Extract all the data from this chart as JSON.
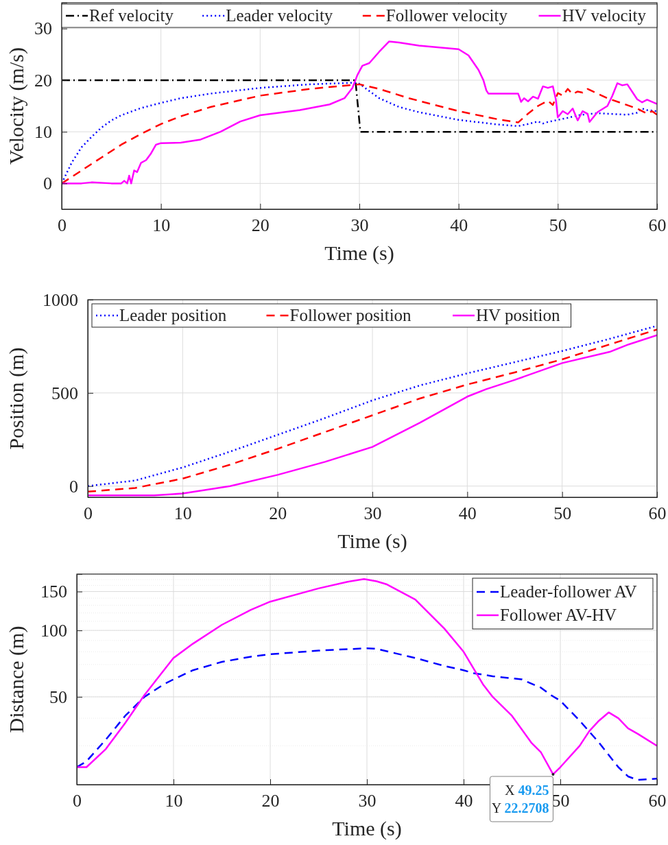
{
  "chart_data": [
    {
      "type": "line",
      "xlabel": "Time (s)",
      "ylabel": "Velocity (m/s)",
      "xlim": [
        0,
        60
      ],
      "xticks": [
        0,
        10,
        20,
        30,
        40,
        50,
        60
      ],
      "ylim": [
        -5,
        35
      ],
      "yticks": [
        0,
        10,
        20,
        30
      ],
      "grid": true,
      "legend": "top",
      "series": [
        {
          "name": "Ref velocity",
          "color": "#000000",
          "line_style": "dashdot",
          "x": [
            0,
            29.6,
            30.1,
            60
          ],
          "values": [
            20,
            20,
            10,
            10
          ]
        },
        {
          "name": "Leader velocity",
          "color": "#0000ff",
          "line_style": "dotted",
          "x": [
            0,
            1,
            2,
            3,
            4,
            5,
            6,
            8,
            10,
            12,
            15,
            20,
            25,
            29.5,
            30,
            32,
            34,
            36,
            40,
            44,
            46,
            47,
            48,
            48.5,
            49,
            50,
            51,
            52,
            54,
            56,
            57,
            58,
            58.5,
            59,
            60
          ],
          "values": [
            0,
            4,
            7,
            9,
            10.8,
            12.2,
            13.2,
            14.6,
            15.6,
            16.5,
            17.4,
            18.5,
            19.2,
            19.5,
            19.3,
            16.5,
            14.8,
            13.8,
            12.3,
            11.4,
            11.1,
            11.5,
            12,
            11.6,
            11.9,
            12.3,
            12.7,
            13.2,
            13.6,
            13.4,
            13.3,
            13.7,
            14.5,
            14.2,
            14
          ]
        },
        {
          "name": "Follower velocity",
          "color": "#ff0000",
          "line_style": "dashed",
          "x": [
            0,
            2,
            4,
            6,
            8,
            10,
            12,
            15,
            20,
            25,
            30,
            32,
            35,
            40,
            44,
            46,
            47,
            48,
            49,
            49.5,
            50,
            50.5,
            51,
            51.5,
            52,
            52.5,
            53,
            55,
            58,
            59,
            59.5,
            60
          ],
          "values": [
            0,
            2.5,
            5,
            7.5,
            9.6,
            11.5,
            13,
            14.8,
            17,
            18.3,
            19.2,
            18.3,
            16.5,
            14,
            12.4,
            11.8,
            13.5,
            15,
            16,
            15.2,
            17.5,
            17,
            18.3,
            17.3,
            17.8,
            17.6,
            18.3,
            16.5,
            14.5,
            13.5,
            14,
            13.3
          ]
        },
        {
          "name": "HV velocity",
          "color": "#ff00ff",
          "line_style": "solid",
          "x": [
            0,
            2,
            3,
            5,
            6,
            6.3,
            6.6,
            6.8,
            7,
            7.3,
            7.6,
            8,
            8.5,
            9,
            9.5,
            10,
            12,
            14,
            16,
            18,
            20,
            24,
            27,
            28.5,
            29.3,
            29.8,
            30.3,
            31,
            32,
            33,
            34,
            36,
            40,
            41,
            42,
            42.5,
            42.8,
            43,
            46,
            46.3,
            46.6,
            47,
            47.5,
            48,
            48.5,
            49,
            49.5,
            49.8,
            50,
            50.5,
            51,
            51.5,
            52,
            52.5,
            53,
            53.2,
            54,
            55,
            55.5,
            56,
            56.5,
            57,
            58,
            58.5,
            59,
            60
          ],
          "values": [
            0,
            0,
            0.2,
            0,
            0,
            0.5,
            0,
            1.5,
            0,
            2.5,
            2.2,
            4,
            4.5,
            5.8,
            7.5,
            7.8,
            7.9,
            8.5,
            10,
            12,
            13.2,
            14.2,
            15.3,
            16.5,
            18.5,
            21,
            22.8,
            23.3,
            25.5,
            27.5,
            27.3,
            26.7,
            26,
            24.8,
            22,
            20,
            18,
            17.4,
            17.4,
            15.8,
            16.5,
            15.9,
            16.8,
            16.4,
            18.8,
            18.5,
            18.8,
            16.3,
            12.8,
            14,
            13.4,
            14.5,
            12.2,
            14,
            13.5,
            11.9,
            13.8,
            15,
            17,
            19.4,
            19,
            19.2,
            16.3,
            15.7,
            16.2,
            15.4
          ]
        }
      ]
    },
    {
      "type": "line",
      "xlabel": "Time (s)",
      "ylabel": "Position (m)",
      "xlim": [
        0,
        60
      ],
      "xticks": [
        0,
        10,
        20,
        30,
        40,
        50,
        60
      ],
      "ylim": [
        -60,
        1000
      ],
      "yticks": [
        0,
        500,
        1000
      ],
      "grid": true,
      "legend": "top left",
      "series": [
        {
          "name": "Leader position",
          "color": "#0000ff",
          "line_style": "dotted",
          "x": [
            0,
            5,
            10,
            15,
            20,
            25,
            30,
            35,
            40,
            45,
            50,
            55,
            60
          ],
          "values": [
            0,
            30,
            100,
            185,
            275,
            365,
            460,
            540,
            605,
            665,
            725,
            790,
            860
          ]
        },
        {
          "name": "Follower position",
          "color": "#ff0000",
          "line_style": "dashed",
          "x": [
            0,
            5,
            10,
            15,
            20,
            25,
            30,
            35,
            40,
            45,
            50,
            55,
            60
          ],
          "values": [
            -30,
            -10,
            40,
            115,
            200,
            290,
            380,
            470,
            545,
            610,
            680,
            760,
            840
          ]
        },
        {
          "name": "HV position",
          "color": "#ff00ff",
          "line_style": "solid",
          "x": [
            0,
            5,
            7,
            10,
            15,
            20,
            25,
            30,
            35,
            40,
            42,
            45,
            50,
            55,
            57,
            60
          ],
          "values": [
            -50,
            -50,
            -50,
            -40,
            0,
            60,
            130,
            210,
            340,
            480,
            520,
            570,
            660,
            720,
            760,
            810
          ]
        }
      ]
    },
    {
      "type": "line",
      "xlabel": "Time (s)",
      "ylabel": "Distance (m)",
      "log": true,
      "xlim": [
        0,
        60
      ],
      "xticks": [
        0,
        10,
        20,
        30,
        40,
        50,
        60
      ],
      "ylim": [
        20,
        180
      ],
      "yticks": [
        50,
        100,
        150
      ],
      "grid": true,
      "legend": "top right",
      "annotations": [
        {
          "text": "X 49.25",
          "x": 49.25,
          "y": 22.2708
        },
        {
          "text": "Y 22.2708",
          "x": 49.25,
          "y": 22.2708
        }
      ],
      "series": [
        {
          "name": "Leader-follower AV",
          "color": "#0000ff",
          "line_style": "dashed",
          "x": [
            0,
            1,
            3,
            5,
            7,
            9,
            10,
            12,
            15,
            18,
            20,
            25,
            30,
            31,
            35,
            38,
            40,
            41,
            43,
            46,
            48,
            49,
            50,
            52,
            54,
            56,
            57,
            58,
            60
          ],
          "values": [
            24,
            25.5,
            32,
            41,
            50,
            57,
            60,
            66,
            72,
            76,
            78,
            81,
            83,
            82.5,
            75,
            69,
            66,
            64,
            62,
            60,
            55,
            51,
            48,
            39,
            31,
            24,
            21.8,
            21,
            21.3
          ]
        },
        {
          "name": "Follower AV-HV",
          "color": "#ff00ff",
          "line_style": "solid",
          "x": [
            0,
            1,
            3,
            5,
            7,
            8,
            10,
            12,
            15,
            18,
            20,
            25,
            28,
            29.7,
            31,
            32,
            35,
            38,
            40,
            42,
            43,
            45,
            47,
            48,
            49.25,
            50,
            52,
            53,
            54,
            55,
            56,
            57,
            58,
            60
          ],
          "values": [
            24,
            24,
            29,
            38,
            51,
            58,
            75,
            87,
            106,
            124,
            135,
            155,
            166,
            171,
            167,
            162,
            138,
            102,
            80,
            57,
            50,
            41,
            31,
            28,
            22.2708,
            24,
            30,
            35,
            39,
            42.5,
            40,
            36,
            34,
            30
          ]
        }
      ]
    }
  ]
}
